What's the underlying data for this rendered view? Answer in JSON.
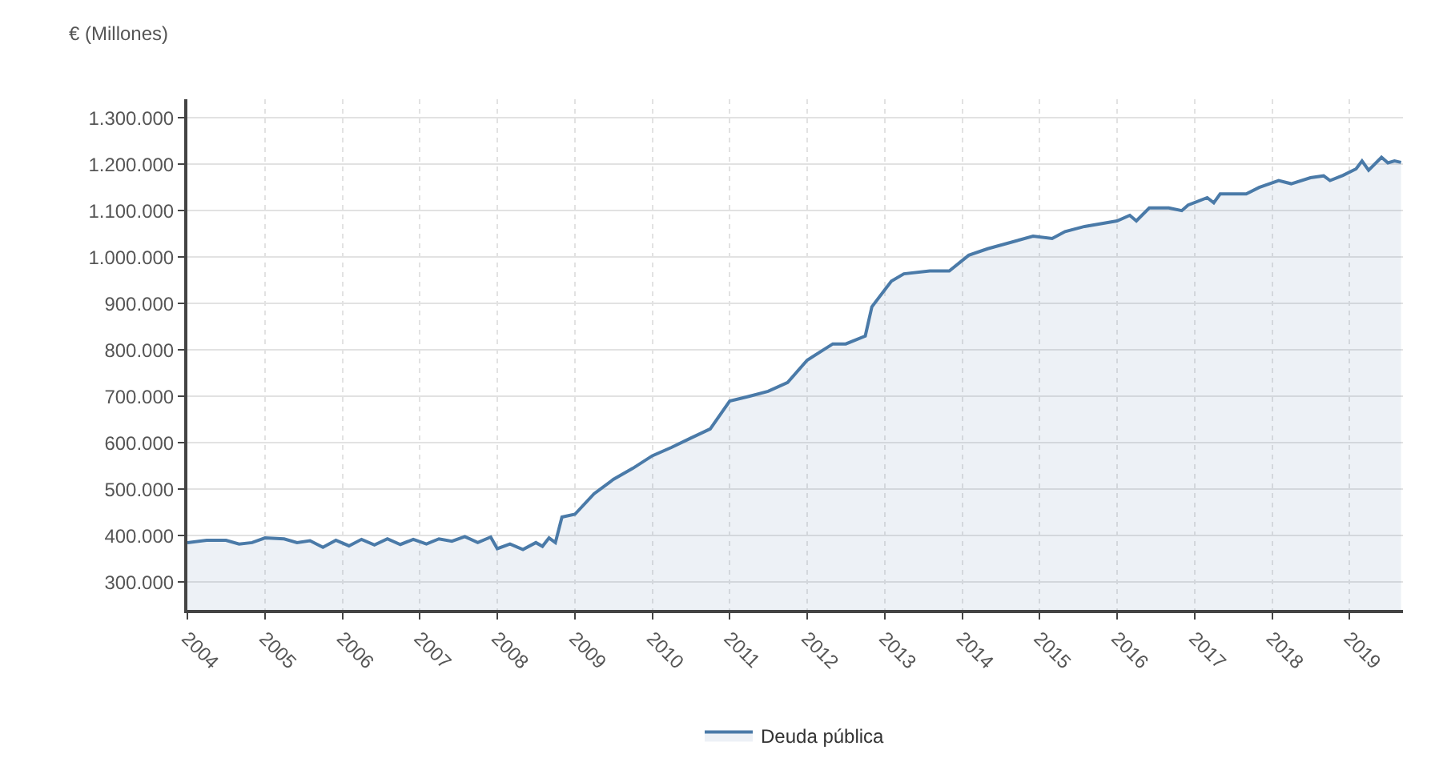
{
  "chart_data": {
    "type": "area",
    "ylabel": "€ (Millones)",
    "x": [
      "2004-01",
      "2004-04",
      "2004-07",
      "2004-09",
      "2004-11",
      "2005-01",
      "2005-04",
      "2005-06",
      "2005-08",
      "2005-10",
      "2005-12",
      "2006-02",
      "2006-04",
      "2006-06",
      "2006-08",
      "2006-10",
      "2006-12",
      "2007-02",
      "2007-04",
      "2007-06",
      "2007-08",
      "2007-10",
      "2007-12",
      "2008-01",
      "2008-03",
      "2008-05",
      "2008-07",
      "2008-08",
      "2008-09",
      "2008-10",
      "2008-11",
      "2009-01",
      "2009-04",
      "2009-07",
      "2009-10",
      "2010-01",
      "2010-04",
      "2010-07",
      "2010-10",
      "2011-01",
      "2011-04",
      "2011-07",
      "2011-10",
      "2012-01",
      "2012-05",
      "2012-07",
      "2012-10",
      "2012-11",
      "2013-02",
      "2013-04",
      "2013-08",
      "2013-11",
      "2014-02",
      "2014-05",
      "2014-12",
      "2015-03",
      "2015-05",
      "2015-08",
      "2016-01",
      "2016-03",
      "2016-04",
      "2016-06",
      "2016-09",
      "2016-11",
      "2016-12",
      "2017-03",
      "2017-04",
      "2017-05",
      "2017-09",
      "2017-11",
      "2018-02",
      "2018-04",
      "2018-07",
      "2018-09",
      "2018-10",
      "2018-12",
      "2019-02",
      "2019-03",
      "2019-04",
      "2019-06",
      "2019-07",
      "2019-08",
      "2019-09"
    ],
    "series": [
      {
        "name": "Deuda pública",
        "color": "#4a7aa8",
        "values": [
          385000,
          390000,
          390000,
          382000,
          385000,
          395000,
          393000,
          385000,
          389000,
          375000,
          390000,
          378000,
          392000,
          380000,
          393000,
          381000,
          392000,
          382000,
          393000,
          388000,
          398000,
          385000,
          397000,
          372000,
          382000,
          370000,
          385000,
          377000,
          395000,
          385000,
          440000,
          446000,
          490000,
          521000,
          545000,
          572000,
          590000,
          610000,
          630000,
          690000,
          700000,
          711000,
          730000,
          778000,
          813000,
          813000,
          830000,
          893000,
          948000,
          964000,
          970000,
          970000,
          1004000,
          1018000,
          1045000,
          1040000,
          1055000,
          1066000,
          1078000,
          1090000,
          1078000,
          1106000,
          1106000,
          1100000,
          1112000,
          1128000,
          1117000,
          1136000,
          1136000,
          1150000,
          1165000,
          1158000,
          1171000,
          1175000,
          1165000,
          1176000,
          1190000,
          1207000,
          1187000,
          1215000,
          1203000,
          1207000,
          1204000
        ]
      }
    ],
    "xlim": [
      "2004-01-01",
      "2019-09-10"
    ],
    "xticks": [
      {
        "value": "2004-01-01",
        "label": "2004"
      },
      {
        "value": "2005-01-01",
        "label": "2005"
      },
      {
        "value": "2006-01-01",
        "label": "2006"
      },
      {
        "value": "2007-01-01",
        "label": "2007"
      },
      {
        "value": "2008-01-01",
        "label": "2008"
      },
      {
        "value": "2009-01-01",
        "label": "2009"
      },
      {
        "value": "2010-01-01",
        "label": "2010"
      },
      {
        "value": "2011-01-01",
        "label": "2011"
      },
      {
        "value": "2012-01-01",
        "label": "2012"
      },
      {
        "value": "2013-01-01",
        "label": "2013"
      },
      {
        "value": "2014-01-01",
        "label": "2014"
      },
      {
        "value": "2015-01-01",
        "label": "2015"
      },
      {
        "value": "2016-01-01",
        "label": "2016"
      },
      {
        "value": "2017-01-01",
        "label": "2017"
      },
      {
        "value": "2018-01-01",
        "label": "2018"
      },
      {
        "value": "2019-01-01",
        "label": "2019"
      }
    ],
    "ylim": [
      240000,
      1340000
    ],
    "yticks": [
      {
        "value": 300000,
        "label": "300.000"
      },
      {
        "value": 400000,
        "label": "400.000"
      },
      {
        "value": 500000,
        "label": "500.000"
      },
      {
        "value": 600000,
        "label": "600.000"
      },
      {
        "value": 700000,
        "label": "700.000"
      },
      {
        "value": 800000,
        "label": "800.000"
      },
      {
        "value": 900000,
        "label": "900.000"
      },
      {
        "value": 1000000,
        "label": "1.000.000"
      },
      {
        "value": 1100000,
        "label": "1.100.000"
      },
      {
        "value": 1200000,
        "label": "1.200.000"
      },
      {
        "value": 1300000,
        "label": "1.300.000"
      }
    ],
    "grid": true,
    "legend": "bottom",
    "marker": "none",
    "line_style": "solid"
  }
}
